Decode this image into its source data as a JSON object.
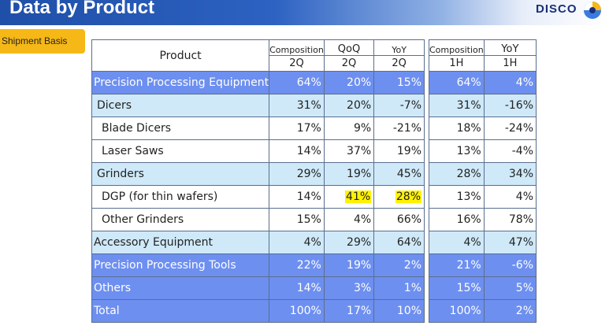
{
  "title": "Data by Product",
  "logo": {
    "text": "DISCO",
    "icon": "disco-logo-icon",
    "colors": [
      "#1a2f78",
      "#f6b816",
      "#3a7be0"
    ]
  },
  "basis_label": "Shipment Basis",
  "colors": {
    "header_blue": "#2d62c2",
    "row_blue": "#6d8ff0",
    "row_light_blue": "#cfe9f8",
    "badge_orange": "#f6b816",
    "highlight": "#fff200"
  },
  "table_quarter": {
    "headers": {
      "product": "Product",
      "col1_top": "Composition",
      "col1_bottom": "2Q",
      "col2_top": "QoQ",
      "col2_bottom": "2Q",
      "col3_top": "YoY",
      "col3_bottom": "2Q"
    }
  },
  "table_half": {
    "headers": {
      "col1_top": "Composition",
      "col1_bottom": "1H",
      "col2_top": "YoY",
      "col2_bottom": "1H"
    }
  },
  "rows": [
    {
      "name": "Precision Processing Equipment",
      "composition_2q": "64%",
      "qoq_2q": "20%",
      "yoy_2q": "15%",
      "composition_1h": "64%",
      "yoy_1h": "4%"
    },
    {
      "name": "Dicers",
      "composition_2q": "31%",
      "qoq_2q": "20%",
      "yoy_2q": "-7%",
      "composition_1h": "31%",
      "yoy_1h": "-16%"
    },
    {
      "name": "Blade Dicers",
      "composition_2q": "17%",
      "qoq_2q": "9%",
      "yoy_2q": "-21%",
      "composition_1h": "18%",
      "yoy_1h": "-24%"
    },
    {
      "name": "Laser Saws",
      "composition_2q": "14%",
      "qoq_2q": "37%",
      "yoy_2q": "19%",
      "composition_1h": "13%",
      "yoy_1h": "-4%"
    },
    {
      "name": "Grinders",
      "composition_2q": "29%",
      "qoq_2q": "19%",
      "yoy_2q": "45%",
      "composition_1h": "28%",
      "yoy_1h": "34%"
    },
    {
      "name": "DGP (for thin wafers)",
      "composition_2q": "14%",
      "qoq_2q": "41%",
      "yoy_2q": "28%",
      "composition_1h": "13%",
      "yoy_1h": "4%"
    },
    {
      "name": "Other Grinders",
      "composition_2q": "15%",
      "qoq_2q": "4%",
      "yoy_2q": "66%",
      "composition_1h": "16%",
      "yoy_1h": "78%"
    },
    {
      "name": "Accessory Equipment",
      "composition_2q": "4%",
      "qoq_2q": "29%",
      "yoy_2q": "64%",
      "composition_1h": "4%",
      "yoy_1h": "47%"
    },
    {
      "name": "Precision Processing Tools",
      "composition_2q": "22%",
      "qoq_2q": "19%",
      "yoy_2q": "2%",
      "composition_1h": "21%",
      "yoy_1h": "-6%"
    },
    {
      "name": "Others",
      "composition_2q": "14%",
      "qoq_2q": "3%",
      "yoy_2q": "1%",
      "composition_1h": "15%",
      "yoy_1h": "5%"
    },
    {
      "name": "Total",
      "composition_2q": "100%",
      "qoq_2q": "17%",
      "yoy_2q": "10%",
      "composition_1h": "100%",
      "yoy_1h": "2%"
    }
  ]
}
